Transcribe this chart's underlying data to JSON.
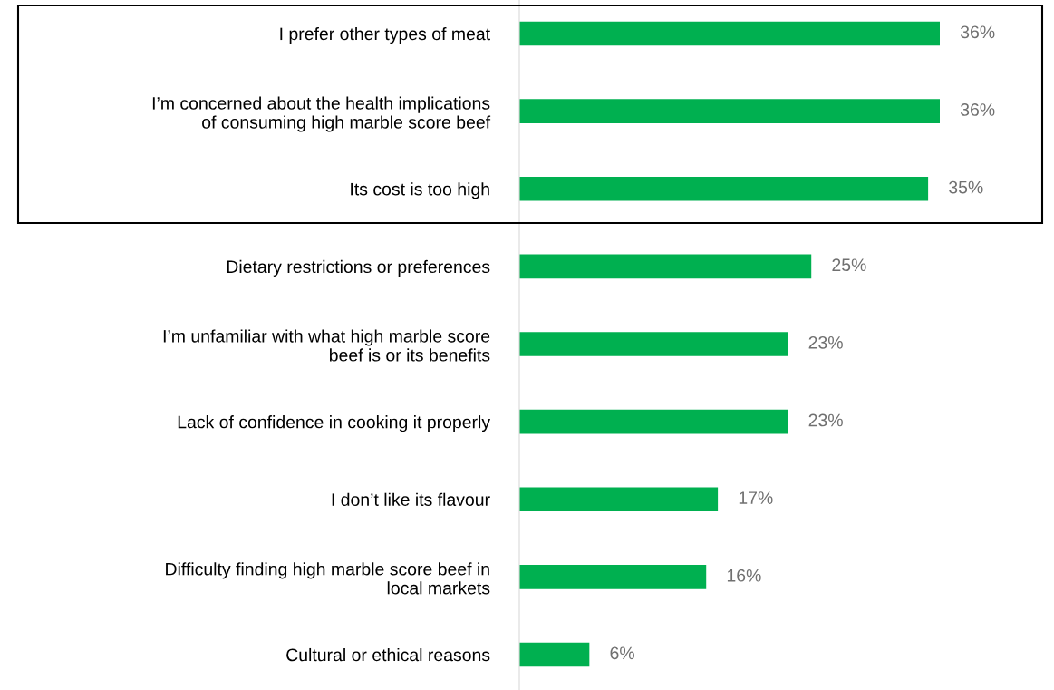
{
  "chart_data": {
    "type": "bar",
    "orientation": "horizontal",
    "categories": [
      "I prefer other types of meat",
      "I’m concerned about the health implications\nof consuming high marble score beef",
      "Its cost is too high",
      "Dietary restrictions or preferences",
      "I’m unfamiliar with what high marble score\nbeef is or its benefits",
      "Lack of confidence in cooking it properly",
      "I don’t like its flavour",
      "Difficulty finding high marble score beef in\nlocal markets",
      "Cultural or ethical reasons"
    ],
    "values": [
      36,
      36,
      35,
      25,
      23,
      23,
      17,
      16,
      6
    ],
    "value_labels": [
      "36%",
      "36%",
      "35%",
      "25%",
      "23%",
      "23%",
      "17%",
      "16%",
      "6%"
    ],
    "color": "#00b050",
    "grid": false,
    "legend": false
  }
}
